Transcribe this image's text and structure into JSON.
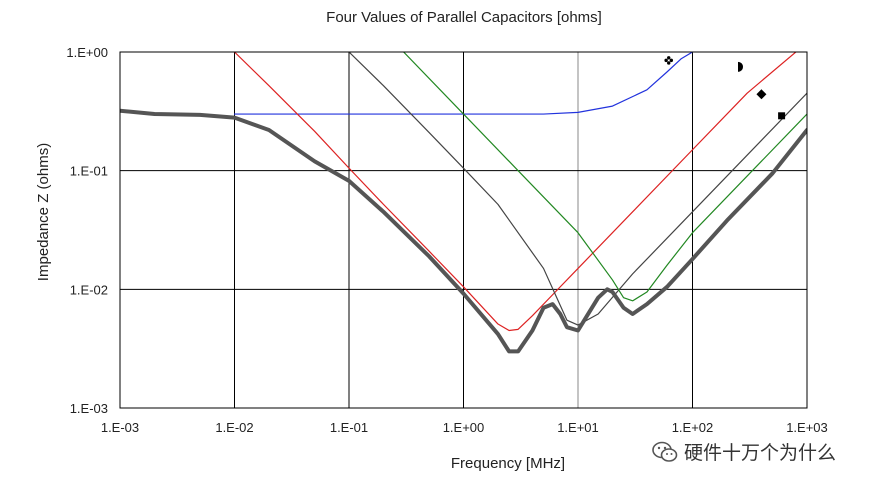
{
  "chart_data": {
    "type": "line",
    "title": "Four Values of Parallel Capacitors [ohms]",
    "xlabel": "Frequency [MHz]",
    "ylabel": "Impedance Z (ohms)",
    "x_scale": "log",
    "y_scale": "log",
    "xlim": [
      0.001,
      1000
    ],
    "ylim": [
      0.001,
      1
    ],
    "x_ticks": [
      {
        "value": 0.001,
        "label": "1.E-03"
      },
      {
        "value": 0.01,
        "label": "1.E-02"
      },
      {
        "value": 0.1,
        "label": "1.E-01"
      },
      {
        "value": 1,
        "label": "1.E+00"
      },
      {
        "value": 10,
        "label": "1.E+01"
      },
      {
        "value": 100,
        "label": "1.E+02"
      },
      {
        "value": 1000,
        "label": "1.E+03"
      }
    ],
    "y_ticks": [
      {
        "value": 0.001,
        "label": "1.E-03"
      },
      {
        "value": 0.01,
        "label": "1.E-02"
      },
      {
        "value": 0.1,
        "label": "1.E-01"
      },
      {
        "value": 1,
        "label": "1.E+00"
      }
    ],
    "grid": true,
    "series": [
      {
        "color": "#2233dd",
        "width": 1.2,
        "x": [
          0.01,
          0.1,
          1,
          5,
          10,
          20,
          40,
          60,
          80,
          100
        ],
        "y": [
          0.3,
          0.3,
          0.3,
          0.3,
          0.31,
          0.35,
          0.48,
          0.68,
          0.88,
          1.0
        ]
      },
      {
        "color": "#dd2222",
        "width": 1.2,
        "x": [
          0.01,
          0.02,
          0.05,
          0.1,
          0.2,
          0.5,
          1,
          2,
          2.5,
          3,
          4,
          6,
          10,
          30,
          100,
          300,
          1000
        ],
        "y": [
          1.0,
          0.52,
          0.215,
          0.105,
          0.052,
          0.021,
          0.0105,
          0.0051,
          0.0045,
          0.0046,
          0.006,
          0.009,
          0.015,
          0.045,
          0.15,
          0.45,
          1.2
        ]
      },
      {
        "color": "#444444",
        "width": 1.2,
        "x": [
          0.1,
          0.2,
          0.5,
          1,
          2,
          5,
          8,
          10,
          15,
          30,
          100,
          300,
          1000
        ],
        "y": [
          1.0,
          0.52,
          0.21,
          0.105,
          0.052,
          0.015,
          0.0055,
          0.005,
          0.0062,
          0.0135,
          0.045,
          0.135,
          0.45
        ]
      },
      {
        "color": "#228822",
        "width": 1.2,
        "x": [
          0.3,
          1,
          3,
          10,
          20,
          25,
          30,
          40,
          60,
          100,
          300,
          1000
        ],
        "y": [
          1.0,
          0.3,
          0.1,
          0.03,
          0.012,
          0.0085,
          0.008,
          0.0095,
          0.016,
          0.03,
          0.09,
          0.3
        ]
      },
      {
        "color": "#555555",
        "width": 4,
        "x": [
          0.001,
          0.002,
          0.005,
          0.01,
          0.02,
          0.05,
          0.1,
          0.2,
          0.5,
          1,
          2,
          2.5,
          3,
          4,
          5,
          6,
          7,
          8,
          10,
          12,
          15,
          18,
          20,
          25,
          30,
          40,
          60,
          100,
          200,
          500,
          1000
        ],
        "y": [
          0.32,
          0.3,
          0.295,
          0.28,
          0.22,
          0.12,
          0.082,
          0.045,
          0.019,
          0.0092,
          0.0042,
          0.003,
          0.003,
          0.0045,
          0.007,
          0.0075,
          0.0062,
          0.0048,
          0.0045,
          0.006,
          0.0085,
          0.01,
          0.0095,
          0.007,
          0.0062,
          0.0075,
          0.0105,
          0.018,
          0.038,
          0.095,
          0.22
        ]
      }
    ],
    "markers": [
      {
        "shape": "clover",
        "x": 62,
        "y": 0.85
      },
      {
        "shape": "half-circle",
        "x": 260,
        "y": 0.75
      },
      {
        "shape": "diamond",
        "x": 400,
        "y": 0.44
      },
      {
        "shape": "square",
        "x": 600,
        "y": 0.29
      }
    ]
  },
  "watermark": {
    "text": "硬件十万个为什么",
    "icon": "wechat-icon"
  }
}
